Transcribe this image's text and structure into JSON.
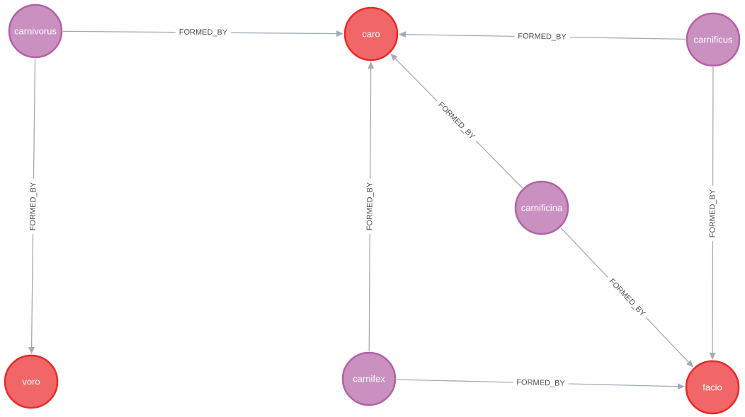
{
  "graph": {
    "node_types": {
      "derived": {
        "fill": "#c990c0",
        "stroke": "#b261a5"
      },
      "root": {
        "fill": "#f16667",
        "stroke": "#eb2728"
      }
    },
    "edge_color": "#a5abb6",
    "nodes": [
      {
        "id": "carnivorus",
        "label": "carnivorus",
        "type": "derived"
      },
      {
        "id": "caro",
        "label": "caro",
        "type": "root"
      },
      {
        "id": "carnificus",
        "label": "carnificus",
        "type": "derived"
      },
      {
        "id": "carnificina",
        "label": "carnificina",
        "type": "derived"
      },
      {
        "id": "voro",
        "label": "voro",
        "type": "root"
      },
      {
        "id": "carnifex",
        "label": "carnifex",
        "type": "derived"
      },
      {
        "id": "facio",
        "label": "facio",
        "type": "root"
      }
    ],
    "edges": [
      {
        "from": "carnivorus",
        "to": "caro",
        "label": "FORMED_BY"
      },
      {
        "from": "carnificus",
        "to": "caro",
        "label": "FORMED_BY"
      },
      {
        "from": "carnivorus",
        "to": "voro",
        "label": "FORMED_BY"
      },
      {
        "from": "carnifex",
        "to": "caro",
        "label": "FORMED_BY"
      },
      {
        "from": "carnificina",
        "to": "caro",
        "label": "FORMED_BY"
      },
      {
        "from": "carnificina",
        "to": "facio",
        "label": "FORMED_BY"
      },
      {
        "from": "carnificus",
        "to": "facio",
        "label": "FORMED_BY"
      },
      {
        "from": "carnifex",
        "to": "facio",
        "label": "FORMED_BY"
      }
    ]
  }
}
